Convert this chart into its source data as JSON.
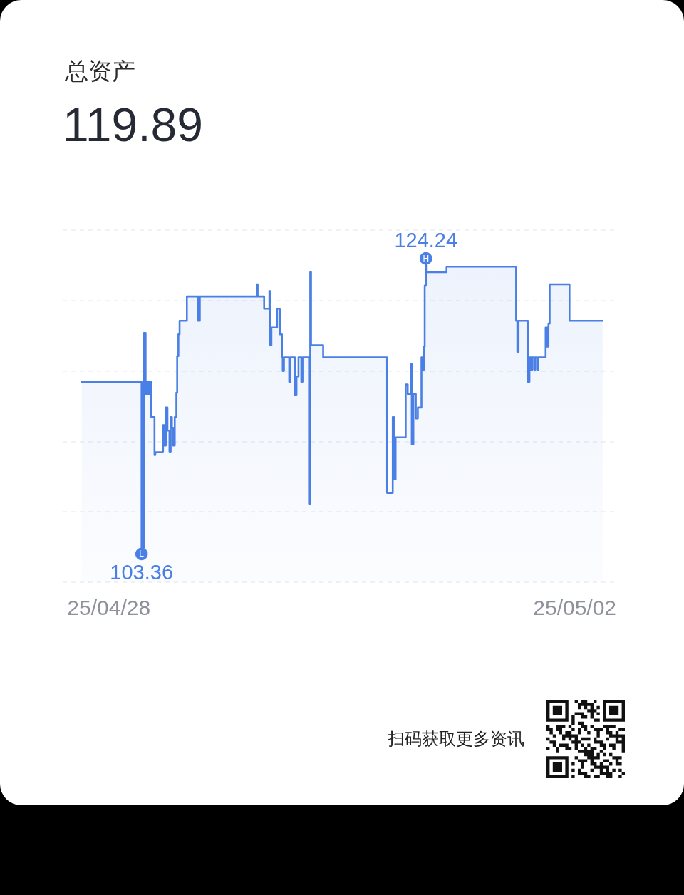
{
  "chart_data": {
    "type": "area",
    "title": "总资产",
    "subtitle": "119.89",
    "annotations": [
      "扫码获取更多资讯",
      {
        "text": "H",
        "x": "--04-30T17:20",
        "y": 124.24
      },
      {
        "text": "L",
        "x": "--04-28T06:45",
        "y": 103.36
      }
    ],
    "x": [
      "--04-27T18:25",
      "--04-28T06:45",
      "--04-28T06:45",
      "--04-28T07:15",
      "--04-28T07:15",
      "--04-28T07:35",
      "--04-28T07:35",
      "--04-28T07:45",
      "--04-28T07:45",
      "--04-28T08:05",
      "--04-28T08:05",
      "--04-28T08:20",
      "--04-28T08:20",
      "--04-28T08:45",
      "--04-28T08:45",
      "--04-28T09:25",
      "--04-28T09:25",
      "--04-28T09:35",
      "--04-28T09:35",
      "--04-28T11:10",
      "--04-28T11:10",
      "--04-28T11:25",
      "--04-28T11:25",
      "--04-28T11:45",
      "--04-28T11:45",
      "--04-28T12:05",
      "--04-28T12:05",
      "--04-28T12:30",
      "--04-28T12:30",
      "--04-28T12:45",
      "--04-28T12:45",
      "--04-28T13:00",
      "--04-28T13:00",
      "--04-28T13:15",
      "--04-28T13:15",
      "--04-28T13:35",
      "--04-28T13:35",
      "--04-28T13:55",
      "--04-28T13:55",
      "--04-28T14:05",
      "--04-28T14:05",
      "--04-28T14:20",
      "--04-28T14:20",
      "--04-28T14:35",
      "--04-28T14:35",
      "--04-28T16:05",
      "--04-28T16:05",
      "--04-28T18:25",
      "--04-28T18:25",
      "--04-28T18:45",
      "--04-28T18:45",
      "--04-29T06:30",
      "--04-29T06:30",
      "--04-29T06:40",
      "--04-29T06:40",
      "--04-29T08:00",
      "--04-29T08:00",
      "--04-29T09:05",
      "--04-29T09:05",
      "--04-29T09:15",
      "--04-29T09:15",
      "--04-29T09:30",
      "--04-29T09:30",
      "--04-29T10:40",
      "--04-29T10:40",
      "--04-29T11:15",
      "--04-29T11:15",
      "--04-29T11:40",
      "--04-29T11:40",
      "--04-29T11:50",
      "--04-29T11:50",
      "--04-29T12:05",
      "--04-29T12:05",
      "--04-29T13:10",
      "--04-29T13:10",
      "--04-29T13:25",
      "--04-29T13:25",
      "--04-29T14:20",
      "--04-29T14:20",
      "--04-29T14:40",
      "--04-29T14:40",
      "--04-29T15:05",
      "--04-29T15:05",
      "--04-29T15:40",
      "--04-29T15:40",
      "--04-29T15:55",
      "--04-29T15:55",
      "--04-29T17:15",
      "--04-29T17:15",
      "--04-29T17:30",
      "--04-29T17:30",
      "--04-29T17:40",
      "--04-29T17:40",
      "--04-29T20:10",
      "--04-29T20:10",
      "--04-30T09:20",
      "--04-30T09:20",
      "--04-30T10:30",
      "--04-30T10:30",
      "--04-30T10:45",
      "--04-30T10:45",
      "--04-30T11:05",
      "--04-30T11:05",
      "--04-30T13:10",
      "--04-30T13:10",
      "--04-30T13:35",
      "--04-30T13:35",
      "--04-30T14:15",
      "--04-30T14:15",
      "--04-30T14:25",
      "--04-30T14:25",
      "--04-30T14:45",
      "--04-30T14:45",
      "--04-30T15:15",
      "--04-30T15:15",
      "--04-30T15:40",
      "--04-30T15:40",
      "--04-30T16:25",
      "--04-30T16:25",
      "--04-30T16:40",
      "--04-30T16:40",
      "--04-30T16:55",
      "--04-30T16:55",
      "--04-30T17:05",
      "--04-30T17:05",
      "--04-30T17:20",
      "--04-30T17:20",
      "--04-30T17:30",
      "--04-30T17:30",
      "--04-30T21:35",
      "--04-30T21:35",
      "--05-01T11:55",
      "--05-01T11:55",
      "--05-01T12:10",
      "--05-01T12:10",
      "--05-01T12:25",
      "--05-01T12:25",
      "--05-01T14:20",
      "--05-01T14:20",
      "--05-01T14:40",
      "--05-01T14:40",
      "--05-01T15:00",
      "--05-01T15:00",
      "--05-01T15:15",
      "--05-01T15:15",
      "--05-01T15:40",
      "--05-01T15:40",
      "--05-01T15:50",
      "--05-01T15:50",
      "--05-01T16:15",
      "--05-01T16:15",
      "--05-01T16:30",
      "--05-01T16:30",
      "--05-01T18:00",
      "--05-01T18:00",
      "--05-01T18:20",
      "--05-01T18:20",
      "--05-01T18:35",
      "--05-01T18:35",
      "--05-01T18:50",
      "--05-01T18:50",
      "--05-01T22:55",
      "--05-01T22:55",
      "--05-02T05:45"
    ],
    "values": [
      115.6,
      115.6,
      103.36,
      103.36,
      119.2,
      119.2,
      114.7,
      114.7,
      115.6,
      115.6,
      114.7,
      114.7,
      115.6,
      115.6,
      113.0,
      113.0,
      110.2,
      110.2,
      110.4,
      110.4,
      112.4,
      112.4,
      110.9,
      110.9,
      113.7,
      113.7,
      112.0,
      112.0,
      110.4,
      110.4,
      113.0,
      113.0,
      112.2,
      112.2,
      110.9,
      110.9,
      113.0,
      113.0,
      114.8,
      114.8,
      117.5,
      117.5,
      119.1,
      119.1,
      120.1,
      120.1,
      121.9,
      121.9,
      120.1,
      120.1,
      121.9,
      121.9,
      122.8,
      122.8,
      121.9,
      121.9,
      121.0,
      121.0,
      122.3,
      122.3,
      118.3,
      118.3,
      119.6,
      119.6,
      121.0,
      121.0,
      119.1,
      119.1,
      117.4,
      117.4,
      116.4,
      116.4,
      117.4,
      117.4,
      115.6,
      115.6,
      117.4,
      117.4,
      114.6,
      114.6,
      116.0,
      116.0,
      117.4,
      117.4,
      115.6,
      115.6,
      117.4,
      117.4,
      106.6,
      106.6,
      123.7,
      123.7,
      118.3,
      118.3,
      117.4,
      117.4,
      107.4,
      107.4,
      113.0,
      113.0,
      108.4,
      108.4,
      111.5,
      111.5,
      115.4,
      115.4,
      114.7,
      114.7,
      116.9,
      116.9,
      111.0,
      111.0,
      114.7,
      114.7,
      112.9,
      112.9,
      113.7,
      113.7,
      117.4,
      117.4,
      116.5,
      116.5,
      118.2,
      118.2,
      122.7,
      122.7,
      124.24,
      124.24,
      123.7,
      123.7,
      124.1,
      124.1,
      120.1,
      120.1,
      117.8,
      117.8,
      120.1,
      120.1,
      115.6,
      115.6,
      117.4,
      117.4,
      116.5,
      116.5,
      117.4,
      117.4,
      116.5,
      116.5,
      117.4,
      117.4,
      116.5,
      116.5,
      117.4,
      117.4,
      119.6,
      119.6,
      118.2,
      118.2,
      119.9,
      119.9,
      122.8,
      122.8,
      120.1,
      120.1
    ],
    "value_labels": [
      null,
      null,
      "103.36",
      null,
      null,
      null,
      null,
      null,
      null,
      null,
      null,
      null,
      null,
      null,
      null,
      null,
      null,
      null,
      null,
      null,
      null,
      null,
      null,
      null,
      null,
      null,
      null,
      null,
      null,
      null,
      null,
      null,
      null,
      null,
      null,
      null,
      null,
      null,
      null,
      null,
      null,
      null,
      null,
      null,
      null,
      null,
      null,
      null,
      null,
      null,
      null,
      null,
      null,
      null,
      null,
      null,
      null,
      null,
      null,
      null,
      null,
      null,
      null,
      null,
      null,
      null,
      null,
      null,
      null,
      null,
      null,
      null,
      null,
      null,
      null,
      null,
      null,
      null,
      null,
      null,
      null,
      null,
      null,
      null,
      null,
      null,
      null,
      null,
      null,
      null,
      null,
      null,
      null,
      null,
      null,
      null,
      null,
      null,
      null,
      null,
      null,
      null,
      null,
      null,
      null,
      null,
      null,
      null,
      null,
      null,
      null,
      null,
      null,
      null,
      null,
      null,
      null,
      null,
      null,
      null,
      null,
      null,
      null,
      null,
      null,
      null,
      "124.24",
      null,
      null,
      null,
      null,
      null,
      null,
      null,
      null,
      null,
      null,
      null,
      null,
      null,
      null,
      null,
      null,
      null,
      null,
      null,
      null,
      null,
      null,
      null,
      null,
      null,
      null,
      null,
      null,
      null,
      null,
      null,
      null,
      null,
      null,
      null,
      null,
      null
    ],
    "color": "#4a7fe5",
    "xlim": [
      "--04-27T14:30",
      "--05-02T08:25"
    ],
    "xticks": [
      {
        "value": "--04-28",
        "label": "25/04/28"
      },
      {
        "value": "--05-02",
        "label": "25/05/02"
      }
    ],
    "ylim": [
      100.8,
      126.8
    ],
    "yticks": [
      {
        "value": 100.8,
        "label": null
      },
      {
        "value": 106.0,
        "label": null
      },
      {
        "value": 111.2,
        "label": null
      },
      {
        "value": 116.4,
        "label": null
      },
      {
        "value": 121.6,
        "label": null
      },
      {
        "value": 126.8,
        "label": null
      }
    ],
    "grid": "y",
    "tick_labels": "x"
  }
}
